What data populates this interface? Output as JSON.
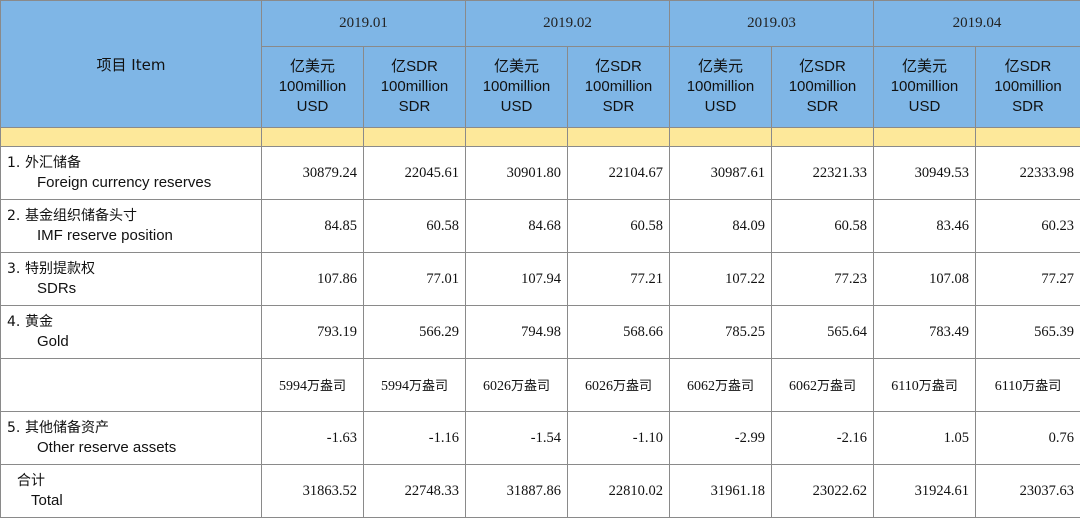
{
  "header": {
    "item": "项目  Item",
    "months": [
      "2019.01",
      "2019.02",
      "2019.03",
      "2019.04"
    ],
    "units": [
      {
        "zh": "亿美元",
        "en1": "100million",
        "en2": "USD"
      },
      {
        "zh": "亿SDR",
        "en1": "100million",
        "en2": "SDR"
      }
    ]
  },
  "rows": [
    {
      "num": "1.",
      "zh": "外汇储备",
      "en": "Foreign currency reserves",
      "values": [
        "30879.24",
        "22045.61",
        "30901.80",
        "22104.67",
        "30987.61",
        "22321.33",
        "30949.53",
        "22333.98"
      ]
    },
    {
      "num": "2.",
      "zh": "基金组织储备头寸",
      "en": "IMF reserve position",
      "values": [
        "84.85",
        "60.58",
        "84.68",
        "60.58",
        "84.09",
        "60.58",
        "83.46",
        "60.23"
      ]
    },
    {
      "num": "3.",
      "zh": "特别提款权",
      "en": "SDRs",
      "values": [
        "107.86",
        "77.01",
        "107.94",
        "77.21",
        "107.22",
        "77.23",
        "107.08",
        "77.27"
      ]
    },
    {
      "num": "4.",
      "zh": "黄金",
      "en": "Gold",
      "values": [
        "793.19",
        "566.29",
        "794.98",
        "568.66",
        "785.25",
        "565.64",
        "783.49",
        "565.39"
      ]
    }
  ],
  "gold_ounces": [
    {
      "num": "5994",
      "unit": "万盎司"
    },
    {
      "num": "5994",
      "unit": "万盎司"
    },
    {
      "num": "6026",
      "unit": "万盎司"
    },
    {
      "num": "6026",
      "unit": "万盎司"
    },
    {
      "num": "6062",
      "unit": "万盎司"
    },
    {
      "num": "6062",
      "unit": "万盎司"
    },
    {
      "num": "6110",
      "unit": "万盎司"
    },
    {
      "num": "6110",
      "unit": "万盎司"
    }
  ],
  "other": {
    "num": "5.",
    "zh": "其他储备资产",
    "en": "Other reserve assets",
    "values": [
      "-1.63",
      "-1.16",
      "-1.54",
      "-1.10",
      "-2.99",
      "-2.16",
      "1.05",
      "0.76"
    ]
  },
  "total": {
    "zh": "合计",
    "en": "Total",
    "values": [
      "31863.52",
      "22748.33",
      "31887.86",
      "22810.02",
      "31961.18",
      "23022.62",
      "31924.61",
      "23037.63"
    ]
  }
}
